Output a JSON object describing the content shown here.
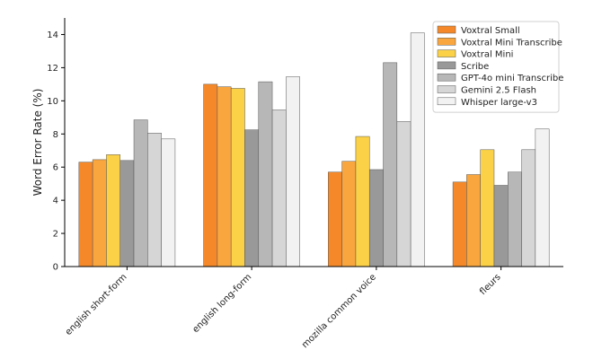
{
  "chart_data": {
    "type": "bar",
    "title": "",
    "xlabel": "",
    "ylabel": "Word Error Rate (%)",
    "ylim": [
      0,
      15
    ],
    "yticks": [
      0,
      2,
      4,
      6,
      8,
      10,
      12,
      14
    ],
    "categories": [
      "english short-form",
      "english long-form",
      "mozilla common voice",
      "fleurs"
    ],
    "legend_position": "top-right",
    "grid": false,
    "series": [
      {
        "name": "Voxtral Small",
        "color": "#f5892a",
        "values": [
          6.3,
          11.0,
          5.7,
          5.1
        ]
      },
      {
        "name": "Voxtral Mini Transcribe",
        "color": "#f9a63e",
        "values": [
          6.45,
          10.85,
          6.35,
          5.55
        ]
      },
      {
        "name": "Voxtral Mini",
        "color": "#fbd147",
        "values": [
          6.75,
          10.75,
          7.85,
          7.05
        ]
      },
      {
        "name": "Scribe",
        "color": "#999999",
        "values": [
          6.4,
          8.25,
          5.85,
          4.9
        ]
      },
      {
        "name": "GPT-4o mini Transcribe",
        "color": "#b7b7b7",
        "values": [
          8.85,
          11.15,
          12.3,
          5.7
        ]
      },
      {
        "name": "Gemini 2.5 Flash",
        "color": "#d6d6d6",
        "values": [
          8.05,
          9.45,
          8.75,
          7.05
        ]
      },
      {
        "name": "Whisper large-v3",
        "color": "#f2f2f2",
        "values": [
          7.7,
          11.45,
          14.1,
          8.3
        ]
      }
    ]
  }
}
